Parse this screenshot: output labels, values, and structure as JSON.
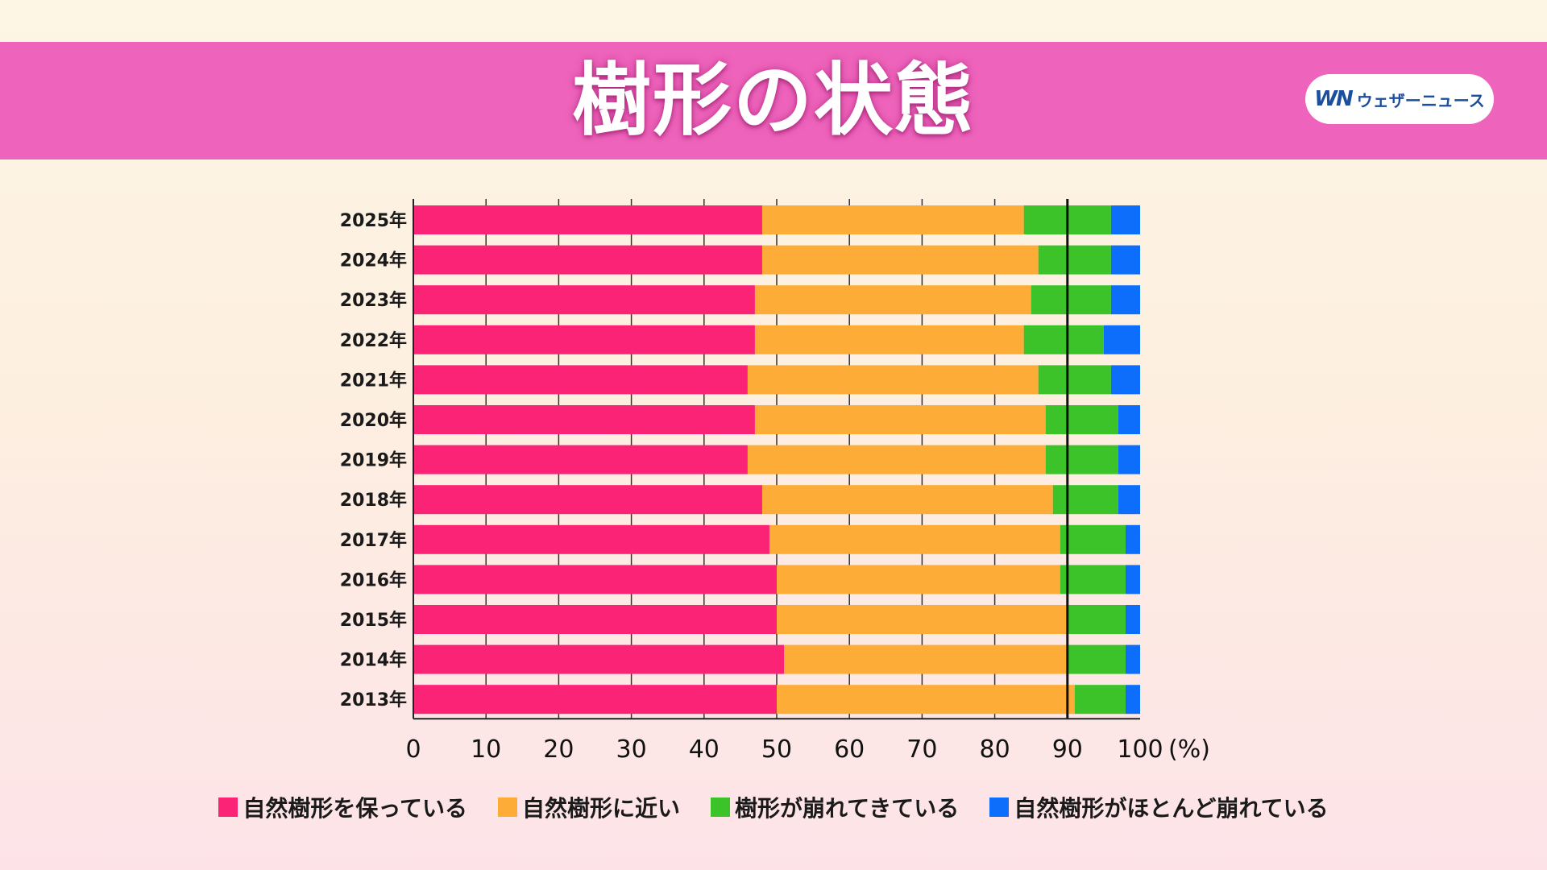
{
  "header": {
    "title": "樹形の状態",
    "brand_mark": "WN",
    "brand_name": "ウェザーニュース",
    "color": "#ee63bb"
  },
  "legend": [
    {
      "label": "自然樹形を保っている",
      "color": "#fa2376"
    },
    {
      "label": "自然樹形に近い",
      "color": "#fdac37"
    },
    {
      "label": "樹形が崩れてきている",
      "color": "#3dc32a"
    },
    {
      "label": "自然樹形がほとんど崩れている",
      "color": "#0d6efb"
    }
  ],
  "chart_data": {
    "type": "bar",
    "orientation": "horizontal",
    "stacked": true,
    "title": "樹形の状態",
    "categories": [
      "2025年",
      "2024年",
      "2023年",
      "2022年",
      "2021年",
      "2020年",
      "2019年",
      "2018年",
      "2017年",
      "2016年",
      "2015年",
      "2014年",
      "2013年"
    ],
    "series": [
      {
        "name": "自然樹形を保っている",
        "color": "#fa2376",
        "values": [
          48,
          48,
          47,
          47,
          46,
          47,
          46,
          48,
          49,
          50,
          50,
          51,
          50
        ]
      },
      {
        "name": "自然樹形に近い",
        "color": "#fdac37",
        "values": [
          36,
          38,
          38,
          37,
          40,
          40,
          41,
          40,
          40,
          39,
          40,
          39,
          41
        ]
      },
      {
        "name": "樹形が崩れてきている",
        "color": "#3dc32a",
        "values": [
          12,
          10,
          11,
          11,
          10,
          10,
          10,
          9,
          9,
          9,
          8,
          8,
          7
        ]
      },
      {
        "name": "自然樹形がほとんど崩れている",
        "color": "#0d6efb",
        "values": [
          4,
          4,
          4,
          5,
          4,
          3,
          3,
          3,
          2,
          2,
          2,
          2,
          2
        ]
      }
    ],
    "xlim": [
      0,
      100
    ],
    "xticks": [
      "0",
      "10",
      "20",
      "30",
      "40",
      "50",
      "60",
      "70",
      "80",
      "90",
      "100"
    ],
    "xunit": "(%)",
    "reference_line": 90,
    "grid": true,
    "legend_position": "bottom"
  }
}
